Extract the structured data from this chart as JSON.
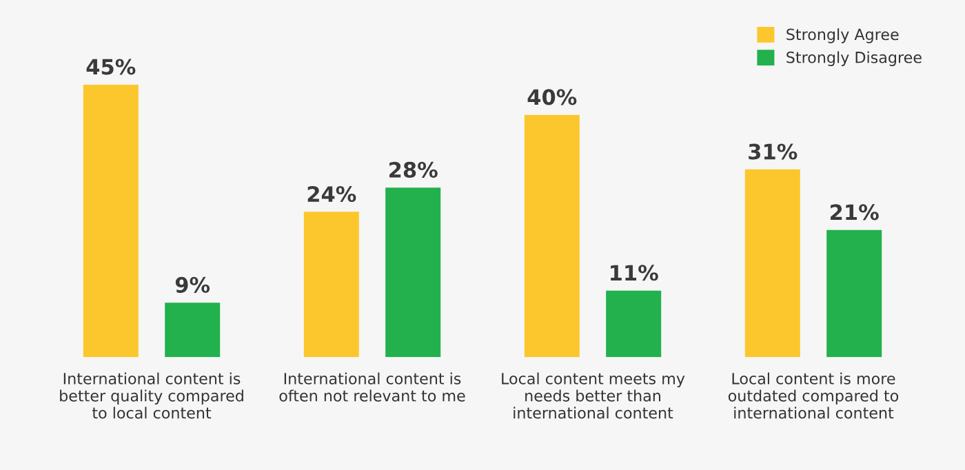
{
  "chart_data": {
    "type": "bar",
    "categories": [
      "International content is\nbetter quality compared\nto local content",
      "International content is\noften not relevant to me",
      "Local content meets my\nneeds better than\ninternational content",
      "Local content is more\noutdated compared to\ninternational content"
    ],
    "series": [
      {
        "name": "Strongly Agree",
        "color": "#fcc72c",
        "values": [
          45,
          24,
          40,
          31
        ],
        "value_labels": [
          "45%",
          "24%",
          "40%",
          "31%"
        ]
      },
      {
        "name": "Strongly Disagree",
        "color": "#22b14c",
        "values": [
          9,
          28,
          11,
          21
        ],
        "value_labels": [
          "9%",
          "28%",
          "11%",
          "21%"
        ]
      }
    ],
    "legend": "top right",
    "grid": false
  }
}
